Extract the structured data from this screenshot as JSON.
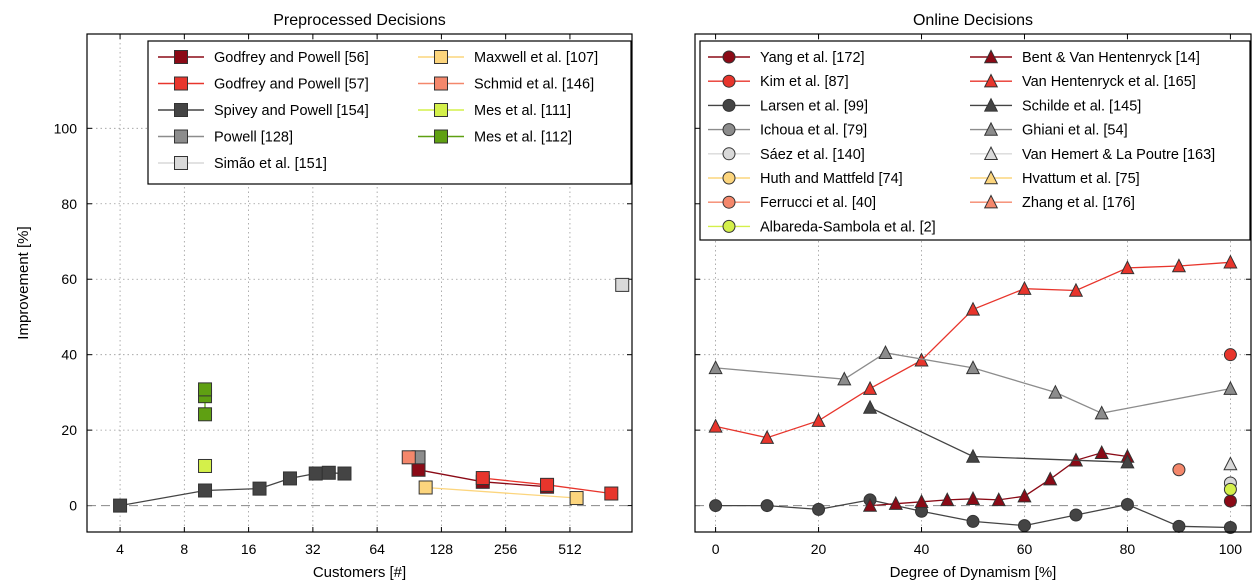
{
  "chart_data": [
    {
      "type": "line",
      "title": "Preprocessed Decisions",
      "xlabel": "Customers [#]",
      "ylabel": "Improvement [%]",
      "x_scale": "log2",
      "x_ticks": [
        "4",
        "8",
        "16",
        "32",
        "64",
        "128",
        "256",
        "512"
      ],
      "y_ticks": [
        "0",
        "20",
        "40",
        "60",
        "80",
        "100"
      ],
      "xlim": [
        2.8,
        1000
      ],
      "ylim": [
        -7,
        125
      ],
      "grid": true,
      "legend_position": "top-right",
      "series": [
        {
          "name": "Godfrey and Powell [56]",
          "color": "#8b0a16",
          "marker": "square",
          "points": [
            [
              100,
              9.5
            ],
            [
              200,
              6.3
            ],
            [
              400,
              5.0
            ]
          ]
        },
        {
          "name": "Godfrey and Powell [57]",
          "color": "#e8352c",
          "marker": "square",
          "points": [
            [
              200,
              7.3
            ],
            [
              400,
              5.5
            ],
            [
              800,
              3.2
            ]
          ]
        },
        {
          "name": "Spivey and Powell [154]",
          "color": "#444444",
          "marker": "square",
          "points": [
            [
              4,
              0
            ],
            [
              10,
              4.0
            ],
            [
              18,
              4.5
            ],
            [
              25,
              7.2
            ],
            [
              33,
              8.5
            ],
            [
              38,
              8.7
            ],
            [
              45,
              8.5
            ]
          ]
        },
        {
          "name": "Powell [128]",
          "color": "#8c8c8c",
          "marker": "square",
          "points": [
            [
              100,
              12.8
            ]
          ]
        },
        {
          "name": "Simão et al. [151]",
          "color": "#d9d9d9",
          "marker": "square",
          "points": [
            [
              900,
              58.5
            ]
          ]
        },
        {
          "name": "Maxwell et al. [107]",
          "color": "#fcd57d",
          "marker": "square",
          "points": [
            [
              108,
              4.8
            ],
            [
              550,
              2.0
            ]
          ]
        },
        {
          "name": "Schmid et al. [146]",
          "color": "#f4876b",
          "marker": "square",
          "points": [
            [
              90,
              12.8
            ]
          ]
        },
        {
          "name": "Mes et al. [111]",
          "color": "#d4f04a",
          "marker": "square",
          "points": [
            [
              10,
              10.5
            ]
          ]
        },
        {
          "name": "Mes et al. [112]",
          "color": "#5fa012",
          "marker": "square",
          "points": [
            [
              10,
              24.2
            ],
            [
              10,
              29.0
            ],
            [
              10,
              30.8
            ]
          ]
        }
      ]
    },
    {
      "type": "line",
      "title": "Online Decisions",
      "xlabel": "Degree of Dynamism [%]",
      "ylabel": "",
      "x_ticks": [
        "0",
        "20",
        "40",
        "60",
        "80",
        "100"
      ],
      "y_ticks": [
        "0",
        "20",
        "40",
        "60",
        "80",
        "100"
      ],
      "xlim": [
        -4,
        104
      ],
      "ylim": [
        -7,
        125
      ],
      "grid": true,
      "legend_position": "top",
      "series": [
        {
          "name": "Yang et al. [172]",
          "color": "#8b0a16",
          "marker": "circle",
          "points": [
            [
              100,
              1.2
            ]
          ]
        },
        {
          "name": "Kim et al. [87]",
          "color": "#e8352c",
          "marker": "circle",
          "points": [
            [
              100,
              40.0
            ]
          ]
        },
        {
          "name": "Larsen et al. [99]",
          "color": "#444444",
          "marker": "circle",
          "points": [
            [
              0,
              0
            ],
            [
              10,
              0
            ],
            [
              20,
              -1
            ],
            [
              30,
              1.5
            ],
            [
              40,
              -1.5
            ],
            [
              50,
              -4.2
            ],
            [
              60,
              -5.3
            ],
            [
              70,
              -2.5
            ],
            [
              80,
              0.3
            ],
            [
              90,
              -5.5
            ],
            [
              100,
              -5.8
            ]
          ]
        },
        {
          "name": "Ichoua et al. [79]",
          "color": "#8c8c8c",
          "marker": "circle",
          "points": []
        },
        {
          "name": "Sáez et al. [140]",
          "color": "#d9d9d9",
          "marker": "circle",
          "points": [
            [
              100,
              6.0
            ]
          ]
        },
        {
          "name": "Huth and Mattfeld [74]",
          "color": "#fcd57d",
          "marker": "circle",
          "points": []
        },
        {
          "name": "Ferrucci et al. [40]",
          "color": "#f4876b",
          "marker": "circle",
          "points": [
            [
              90,
              9.5
            ]
          ]
        },
        {
          "name": "Albareda-Sambola et al. [2]",
          "color": "#d4f04a",
          "marker": "circle",
          "points": [
            [
              100,
              4.3
            ]
          ]
        },
        {
          "name": "Bent & Van Hentenryck [14]",
          "color": "#8b0a16",
          "marker": "triangle",
          "points": [
            [
              30,
              0
            ],
            [
              35,
              0.5
            ],
            [
              40,
              1.0
            ],
            [
              45,
              1.5
            ],
            [
              50,
              1.8
            ],
            [
              55,
              1.5
            ],
            [
              60,
              2.5
            ],
            [
              65,
              7.0
            ],
            [
              70,
              12.0
            ],
            [
              75,
              14.0
            ],
            [
              80,
              13.0
            ]
          ]
        },
        {
          "name": "Van Hentenryck et al. [165]",
          "color": "#e8352c",
          "marker": "triangle",
          "points": [
            [
              0,
              21.0
            ],
            [
              10,
              18.0
            ],
            [
              20,
              22.5
            ],
            [
              30,
              31.0
            ],
            [
              40,
              38.5
            ],
            [
              50,
              52.0
            ],
            [
              60,
              57.5
            ],
            [
              70,
              57.0
            ],
            [
              80,
              63.0
            ],
            [
              90,
              63.5
            ],
            [
              100,
              64.5
            ]
          ]
        },
        {
          "name": "Schilde et al. [145]",
          "color": "#444444",
          "marker": "triangle",
          "points": [
            [
              30,
              26.0
            ],
            [
              50,
              13.0
            ],
            [
              80,
              11.5
            ]
          ]
        },
        {
          "name": "Ghiani et al. [54]",
          "color": "#8c8c8c",
          "marker": "triangle",
          "points": [
            [
              0,
              36.5
            ],
            [
              25,
              33.5
            ],
            [
              33,
              40.5
            ],
            [
              50,
              36.5
            ],
            [
              66,
              30.0
            ],
            [
              75,
              24.5
            ],
            [
              100,
              31.0
            ]
          ]
        },
        {
          "name": "Van Hemert & La Poutre [163]",
          "color": "#d9d9d9",
          "marker": "triangle",
          "points": [
            [
              100,
              11.0
            ]
          ]
        },
        {
          "name": "Hvattum et al. [75]",
          "color": "#fcd57d",
          "marker": "triangle",
          "points": []
        },
        {
          "name": "Zhang et al. [176]",
          "color": "#f4876b",
          "marker": "triangle",
          "points": []
        }
      ]
    }
  ]
}
